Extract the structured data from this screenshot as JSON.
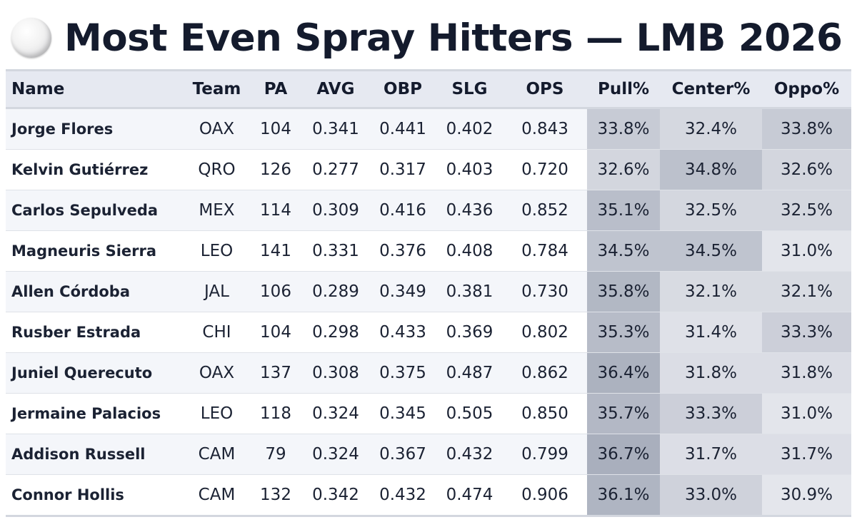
{
  "header": {
    "title": "Most Even Spray Hitters — LMB 2026",
    "icon": "baseball-icon"
  },
  "chart_data": {
    "type": "table",
    "title": "Most Even Spray Hitters — LMB 2026",
    "columns": [
      "Name",
      "Team",
      "PA",
      "AVG",
      "OBP",
      "SLG",
      "OPS",
      "Pull%",
      "Center%",
      "Oppo%"
    ],
    "rows": [
      [
        "Jorge Flores",
        "OAX",
        "104",
        "0.341",
        "0.441",
        "0.402",
        "0.843",
        "33.8%",
        "32.4%",
        "33.8%"
      ],
      [
        "Kelvin Gutiérrez",
        "QRO",
        "126",
        "0.277",
        "0.317",
        "0.403",
        "0.720",
        "32.6%",
        "34.8%",
        "32.6%"
      ],
      [
        "Carlos Sepulveda",
        "MEX",
        "114",
        "0.309",
        "0.416",
        "0.436",
        "0.852",
        "35.1%",
        "32.5%",
        "32.5%"
      ],
      [
        "Magneuris Sierra",
        "LEO",
        "141",
        "0.331",
        "0.376",
        "0.408",
        "0.784",
        "34.5%",
        "34.5%",
        "31.0%"
      ],
      [
        "Allen Córdoba",
        "JAL",
        "106",
        "0.289",
        "0.349",
        "0.381",
        "0.730",
        "35.8%",
        "32.1%",
        "32.1%"
      ],
      [
        "Rusber Estrada",
        "CHI",
        "104",
        "0.298",
        "0.433",
        "0.369",
        "0.802",
        "35.3%",
        "31.4%",
        "33.3%"
      ],
      [
        "Juniel Querecuto",
        "OAX",
        "137",
        "0.308",
        "0.375",
        "0.487",
        "0.862",
        "36.4%",
        "31.8%",
        "31.8%"
      ],
      [
        "Jermaine Palacios",
        "LEO",
        "118",
        "0.324",
        "0.345",
        "0.505",
        "0.850",
        "35.7%",
        "33.3%",
        "31.0%"
      ],
      [
        "Addison Russell",
        "CAM",
        "79",
        "0.324",
        "0.367",
        "0.432",
        "0.799",
        "36.7%",
        "31.7%",
        "31.7%"
      ],
      [
        "Connor Hollis",
        "CAM",
        "132",
        "0.342",
        "0.432",
        "0.474",
        "0.906",
        "36.1%",
        "33.0%",
        "30.9%"
      ]
    ],
    "heat_color_low": "#e4e6ec",
    "heat_color_high": "#a9afbd"
  }
}
